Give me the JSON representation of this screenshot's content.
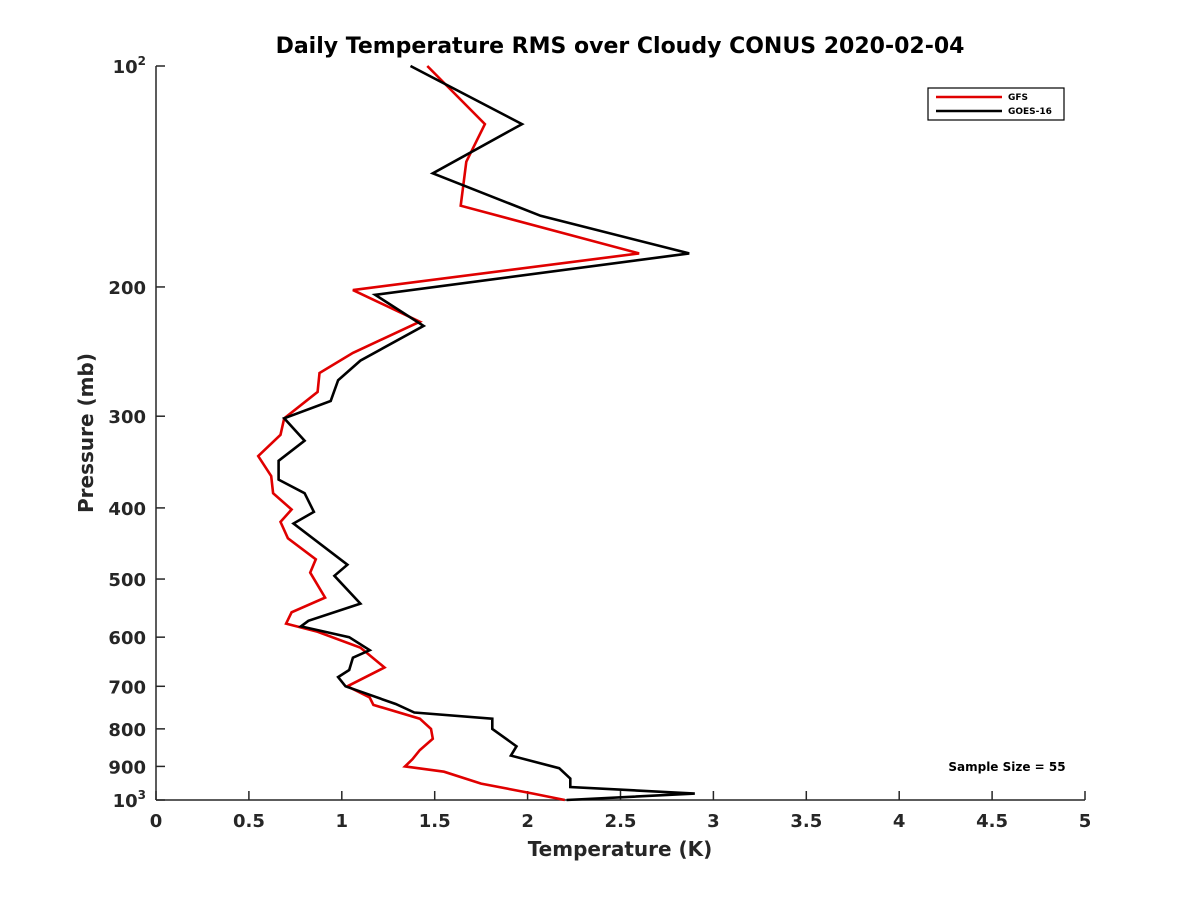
{
  "chart_data": {
    "type": "line",
    "title": "Daily Temperature RMS over Cloudy CONUS 2020-02-04",
    "xlabel": "Temperature (K)",
    "ylabel": "Pressure (mb)",
    "xlim": [
      0,
      5
    ],
    "ylim": [
      100,
      1000
    ],
    "yscale": "log",
    "yreversed": true,
    "x_ticks": [
      "0",
      "0.5",
      "1",
      "1.5",
      "2",
      "2.5",
      "3",
      "3.5",
      "4",
      "4.5",
      "5"
    ],
    "y_ticks": [
      {
        "value": 100,
        "base": "10",
        "exp": "2"
      },
      {
        "value": 200,
        "label": "200"
      },
      {
        "value": 300,
        "label": "300"
      },
      {
        "value": 400,
        "label": "400"
      },
      {
        "value": 500,
        "label": "500"
      },
      {
        "value": 600,
        "label": "600"
      },
      {
        "value": 700,
        "label": "700"
      },
      {
        "value": 800,
        "label": "800"
      },
      {
        "value": 900,
        "label": "900"
      },
      {
        "value": 1000,
        "base": "10",
        "exp": "3"
      }
    ],
    "grid": false,
    "legend_position": "top-right",
    "annotation": "Sample Size = 55",
    "series": [
      {
        "name": "GFS",
        "color": "#e00000",
        "points": [
          [
            1.46,
            100
          ],
          [
            1.77,
            120
          ],
          [
            1.67,
            135
          ],
          [
            1.64,
            155
          ],
          [
            2.6,
            180
          ],
          [
            1.06,
            202
          ],
          [
            1.42,
            223
          ],
          [
            1.06,
            246
          ],
          [
            0.88,
            262
          ],
          [
            0.87,
            278
          ],
          [
            0.69,
            302
          ],
          [
            0.67,
            318
          ],
          [
            0.55,
            340
          ],
          [
            0.62,
            362
          ],
          [
            0.63,
            382
          ],
          [
            0.73,
            402
          ],
          [
            0.67,
            418
          ],
          [
            0.71,
            440
          ],
          [
            0.86,
            470
          ],
          [
            0.83,
            490
          ],
          [
            0.91,
            530
          ],
          [
            0.73,
            555
          ],
          [
            0.7,
            575
          ],
          [
            0.87,
            590
          ],
          [
            1.1,
            620
          ],
          [
            1.23,
            660
          ],
          [
            1.03,
            700
          ],
          [
            1.15,
            725
          ],
          [
            1.17,
            742
          ],
          [
            1.42,
            775
          ],
          [
            1.48,
            800
          ],
          [
            1.49,
            825
          ],
          [
            1.42,
            855
          ],
          [
            1.38,
            880
          ],
          [
            1.34,
            900
          ],
          [
            1.55,
            915
          ],
          [
            1.75,
            950
          ],
          [
            2.03,
            980
          ],
          [
            2.2,
            1000
          ]
        ]
      },
      {
        "name": "GOES-16",
        "color": "#000000",
        "points": [
          [
            1.37,
            100
          ],
          [
            1.97,
            120
          ],
          [
            1.49,
            140
          ],
          [
            2.07,
            160
          ],
          [
            2.87,
            180
          ],
          [
            1.18,
            205
          ],
          [
            1.44,
            226
          ],
          [
            1.1,
            252
          ],
          [
            0.98,
            268
          ],
          [
            0.94,
            286
          ],
          [
            0.69,
            302
          ],
          [
            0.8,
            324
          ],
          [
            0.66,
            345
          ],
          [
            0.66,
            366
          ],
          [
            0.8,
            382
          ],
          [
            0.85,
            405
          ],
          [
            0.74,
            420
          ],
          [
            1.03,
            478
          ],
          [
            0.96,
            495
          ],
          [
            1.1,
            540
          ],
          [
            0.82,
            570
          ],
          [
            0.78,
            580
          ],
          [
            1.04,
            600
          ],
          [
            1.15,
            625
          ],
          [
            1.06,
            640
          ],
          [
            1.04,
            665
          ],
          [
            0.98,
            680
          ],
          [
            1.02,
            700
          ],
          [
            1.29,
            740
          ],
          [
            1.39,
            760
          ],
          [
            1.81,
            775
          ],
          [
            1.81,
            800
          ],
          [
            1.94,
            845
          ],
          [
            1.91,
            870
          ],
          [
            2.17,
            905
          ],
          [
            2.23,
            935
          ],
          [
            2.23,
            960
          ],
          [
            2.9,
            980
          ],
          [
            2.21,
            1000
          ]
        ]
      }
    ]
  }
}
